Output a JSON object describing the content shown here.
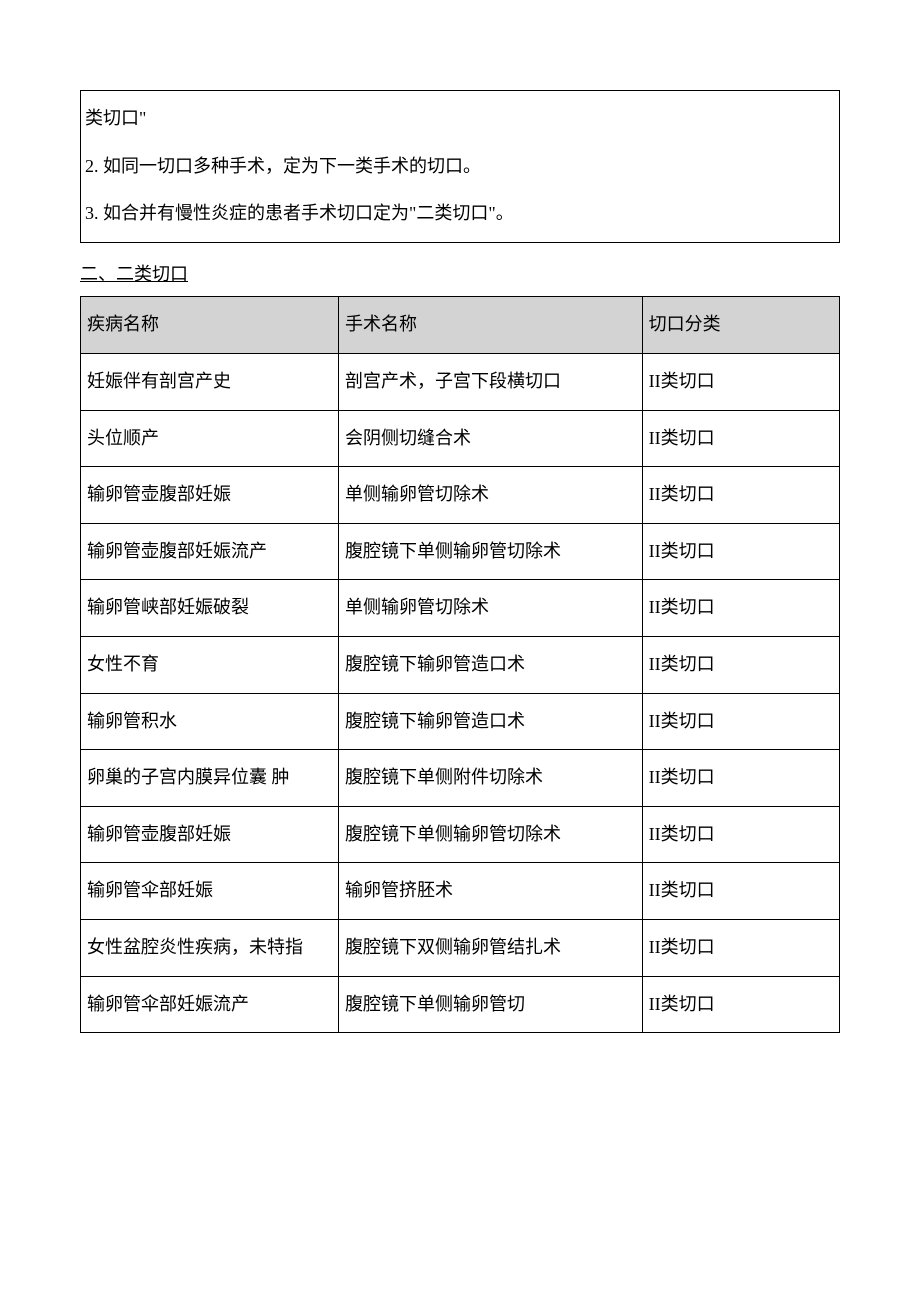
{
  "notes": {
    "line1": "类切口\"",
    "line2": "2. 如同一切口多种手术，定为下一类手术的切口。",
    "line3": "3. 如合并有慢性炎症的患者手术切口定为\"二类切口\"。"
  },
  "section_title": "二、二类切口",
  "table": {
    "headers": {
      "col1": "疾病名称",
      "col2": "手术名称",
      "col3": "切口分类"
    },
    "rows": [
      {
        "disease": "妊娠伴有剖宫产史",
        "surgery": "剖宫产术，子宫下段横切口",
        "category": "II类切口"
      },
      {
        "disease": "头位顺产",
        "surgery": "会阴侧切缝合术",
        "category": "II类切口"
      },
      {
        "disease": "输卵管壶腹部妊娠",
        "surgery": "单侧输卵管切除术",
        "category": "II类切口"
      },
      {
        "disease": "输卵管壶腹部妊娠流产",
        "surgery": "腹腔镜下单侧输卵管切除术",
        "category": "II类切口"
      },
      {
        "disease": "输卵管峡部妊娠破裂",
        "surgery": "单侧输卵管切除术",
        "category": "II类切口"
      },
      {
        "disease": "女性不育",
        "surgery": "腹腔镜下输卵管造口术",
        "category": "II类切口"
      },
      {
        "disease": "输卵管积水",
        "surgery": "腹腔镜下输卵管造口术",
        "category": "II类切口"
      },
      {
        "disease": "卵巢的子宫内膜异位囊  肿",
        "surgery": "腹腔镜下单侧附件切除术",
        "category": "II类切口"
      },
      {
        "disease": "输卵管壶腹部妊娠",
        "surgery": "腹腔镜下单侧输卵管切除术",
        "category": "II类切口"
      },
      {
        "disease": "输卵管伞部妊娠",
        "surgery": "输卵管挤胚术",
        "category": "II类切口"
      },
      {
        "disease": "女性盆腔炎性疾病，未特指",
        "surgery": "腹腔镜下双侧输卵管结扎术",
        "category": "II类切口"
      },
      {
        "disease": "输卵管伞部妊娠流产",
        "surgery": "腹腔镜下单侧输卵管切",
        "category": "II类切口"
      }
    ]
  },
  "colors": {
    "header_bg": "#d3d3d3",
    "border": "#000000",
    "background": "#ffffff",
    "text": "#000000"
  },
  "typography": {
    "font_family": "SimSun",
    "font_size": 18,
    "line_height": 2.2
  }
}
